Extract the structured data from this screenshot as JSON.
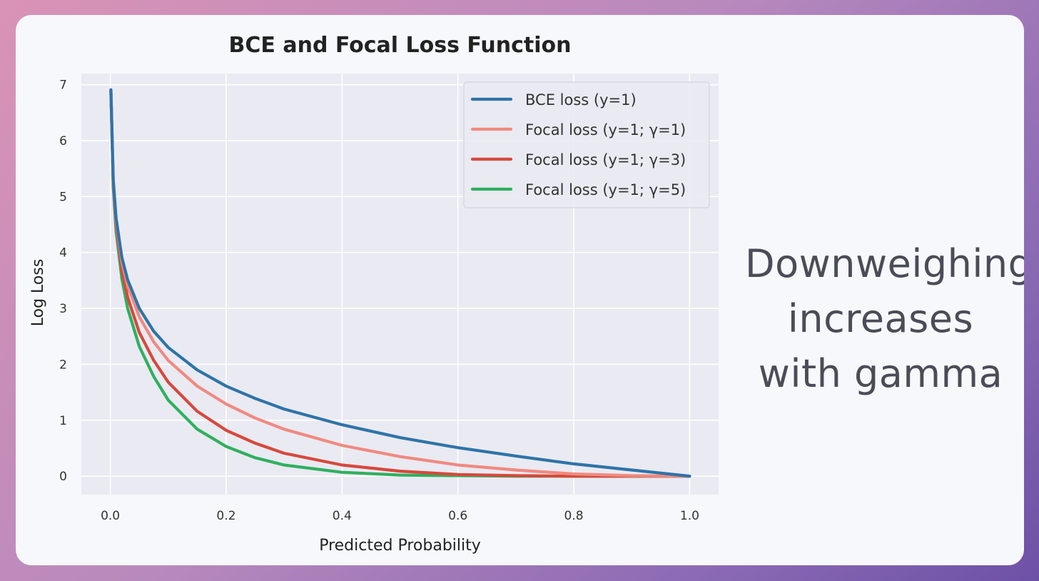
{
  "chart_data": {
    "type": "line",
    "title": "BCE and Focal Loss Function",
    "xlabel": "Predicted Probability",
    "ylabel": "Log Loss",
    "xlim": [
      -0.05,
      1.05
    ],
    "ylim": [
      -0.33,
      7.2
    ],
    "xticks": [
      0.0,
      0.2,
      0.4,
      0.6,
      0.8,
      1.0
    ],
    "xtick_labels": [
      "0.0",
      "0.2",
      "0.4",
      "0.6",
      "0.8",
      "1.0"
    ],
    "yticks": [
      0,
      1,
      2,
      3,
      4,
      5,
      6,
      7
    ],
    "ytick_labels": [
      "0",
      "1",
      "2",
      "3",
      "4",
      "5",
      "6",
      "7"
    ],
    "grid": true,
    "legend_position": "top-right",
    "x": [
      0.001,
      0.005,
      0.01,
      0.02,
      0.03,
      0.05,
      0.075,
      0.1,
      0.15,
      0.2,
      0.25,
      0.3,
      0.4,
      0.5,
      0.6,
      0.7,
      0.8,
      0.9,
      1.0
    ],
    "series": [
      {
        "name": "BCE loss (y=1)",
        "color": "#2e74a8",
        "values": [
          6.91,
          5.3,
          4.61,
          3.91,
          3.51,
          3.0,
          2.59,
          2.3,
          1.9,
          1.61,
          1.39,
          1.2,
          0.92,
          0.69,
          0.51,
          0.36,
          0.22,
          0.11,
          0.0
        ]
      },
      {
        "name": "Focal loss (y=1; γ=1)",
        "color": "#f08a80",
        "values": [
          6.9,
          5.27,
          4.56,
          3.83,
          3.4,
          2.85,
          2.4,
          2.07,
          1.61,
          1.29,
          1.04,
          0.84,
          0.55,
          0.35,
          0.2,
          0.11,
          0.04,
          0.01,
          0.0
        ]
      },
      {
        "name": "Focal loss (y=1; γ=3)",
        "color": "#d6493c",
        "values": [
          6.89,
          5.22,
          4.47,
          3.68,
          3.2,
          2.57,
          2.07,
          1.68,
          1.16,
          0.82,
          0.59,
          0.41,
          0.2,
          0.09,
          0.03,
          0.01,
          0.0,
          0.0,
          0.0
        ]
      },
      {
        "name": "Focal loss (y=1; γ=5)",
        "color": "#2fb05f",
        "values": [
          6.88,
          5.17,
          4.38,
          3.53,
          3.0,
          2.32,
          1.78,
          1.36,
          0.84,
          0.53,
          0.33,
          0.2,
          0.07,
          0.02,
          0.01,
          0.0,
          0.0,
          0.0,
          0.0
        ]
      }
    ]
  },
  "annotation": {
    "line1": "Downweighing",
    "line2": "increases",
    "line3": "with gamma"
  }
}
